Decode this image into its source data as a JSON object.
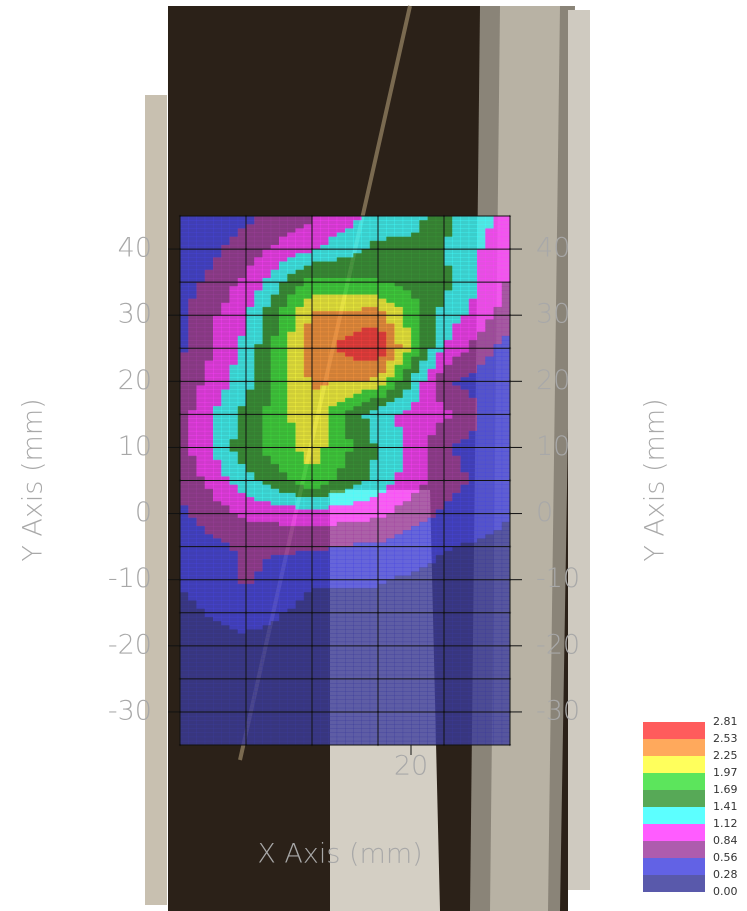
{
  "chart_data": {
    "type": "contour",
    "x_label": "X Axis (mm)",
    "y_label": "Y Axis (mm)",
    "x": [
      -15,
      -5,
      5,
      15,
      25,
      35
    ],
    "y": [
      45,
      40,
      35,
      30,
      25,
      20,
      15,
      10,
      5,
      0,
      -5,
      -10,
      -15,
      -20,
      -25,
      -30,
      -35
    ],
    "z": [
      [
        0.3,
        0.5,
        0.8,
        1.2,
        1.5,
        1.0
      ],
      [
        0.3,
        0.7,
        1.1,
        1.5,
        1.4,
        0.9
      ],
      [
        0.4,
        0.9,
        1.8,
        1.7,
        1.5,
        0.8
      ],
      [
        0.5,
        1.1,
        2.3,
        2.4,
        1.3,
        0.7
      ],
      [
        0.5,
        1.2,
        2.4,
        2.8,
        1.1,
        0.4
      ],
      [
        0.6,
        1.3,
        2.3,
        2.2,
        0.6,
        0.3
      ],
      [
        0.7,
        1.5,
        2.2,
        1.2,
        0.9,
        0.3
      ],
      [
        0.7,
        1.6,
        2.1,
        1.4,
        0.6,
        0.3
      ],
      [
        0.6,
        1.3,
        1.9,
        1.3,
        0.7,
        0.3
      ],
      [
        0.5,
        0.9,
        1.0,
        0.9,
        0.5,
        0.3
      ],
      [
        0.4,
        0.6,
        0.6,
        0.5,
        0.3,
        0.2
      ],
      [
        0.3,
        0.6,
        0.3,
        0.3,
        0.2,
        0.1
      ],
      [
        0.2,
        0.4,
        0.2,
        0.2,
        0.1,
        0.1
      ],
      [
        0.2,
        0.2,
        0.1,
        0.1,
        0.1,
        0.1
      ],
      [
        0.1,
        0.1,
        0.1,
        0.1,
        0.1,
        0.1
      ],
      [
        0.1,
        0.1,
        0.1,
        0.1,
        0.1,
        0.1
      ],
      [
        0.1,
        0.1,
        0.1,
        0.1,
        0.1,
        0.1
      ]
    ],
    "xlim": [
      -15,
      35
    ],
    "ylim": [
      -35,
      45
    ],
    "xticks": [
      20
    ],
    "yticks": [
      -30,
      -20,
      -10,
      0,
      10,
      20,
      30,
      40
    ],
    "levels": [
      {
        "value": 0,
        "label": "0.00"
      },
      {
        "value": 0.28,
        "label": "0.28"
      },
      {
        "value": 0.56,
        "label": "0.56"
      },
      {
        "value": 0.84,
        "label": "0.84"
      },
      {
        "value": 1.12,
        "label": "1.12"
      },
      {
        "value": 1.41,
        "label": "1.41"
      },
      {
        "value": 1.69,
        "label": "1.69"
      },
      {
        "value": 1.97,
        "label": "1.97"
      },
      {
        "value": 2.25,
        "label": "2.25"
      },
      {
        "value": 2.53,
        "label": "2.53"
      },
      {
        "value": 2.81,
        "label": "2.81"
      }
    ],
    "colors": [
      "#3c3c9c",
      "#4646e0",
      "#a040a0",
      "#ff40ff",
      "#40ffff",
      "#3a9a3a",
      "#40e040",
      "#ffff40",
      "#ff9a40",
      "#ff4040"
    ],
    "grid": true
  }
}
